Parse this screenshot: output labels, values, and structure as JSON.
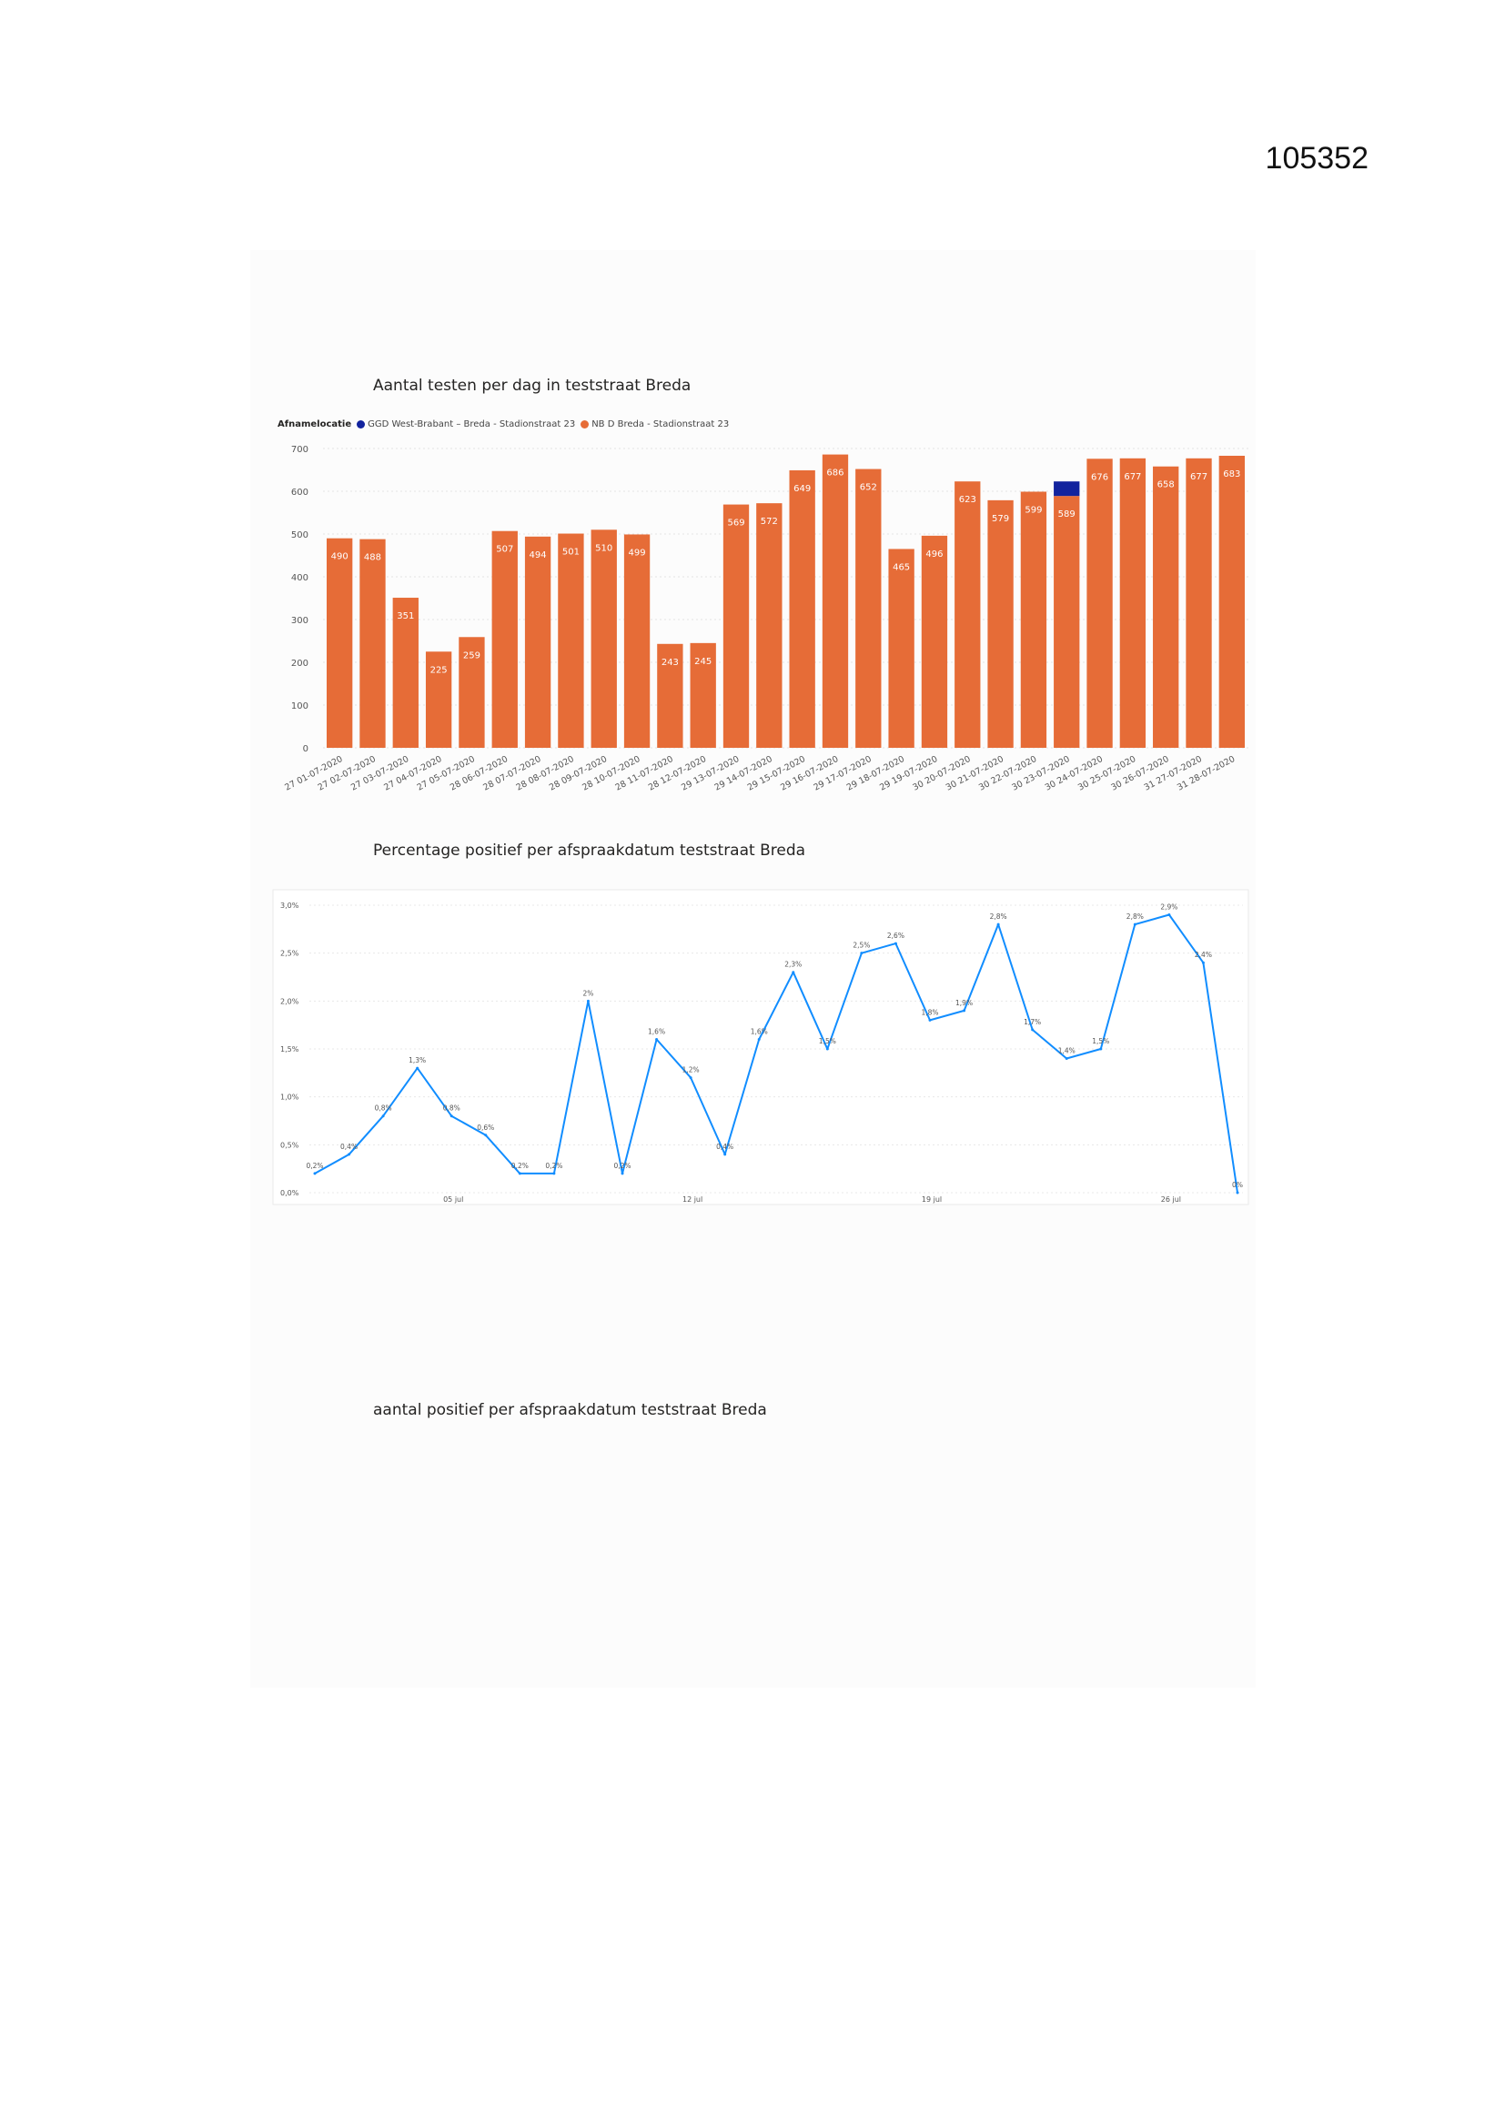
{
  "document_id": "105352",
  "charts": [
    {
      "title": "Aantal testen per dag in teststraat Breda"
    },
    {
      "title": "Percentage positief per afspraakdatum teststraat Breda"
    },
    {
      "title": "aantal positief per afspraakdatum teststraat Breda"
    }
  ],
  "legend": {
    "title": "Afnamelocatie",
    "items": [
      {
        "label": "GGD West-Brabant – Breda - Stadionstraat 23",
        "color": "#12239E"
      },
      {
        "label": "NB D Breda - Stadionstraat 23",
        "color": "#E66C37"
      }
    ]
  },
  "chart_data": [
    {
      "type": "bar",
      "title": "Aantal testen per dag in teststraat Breda",
      "categories": [
        "27 01-07-2020",
        "27 02-07-2020",
        "27 03-07-2020",
        "27 04-07-2020",
        "27 05-07-2020",
        "28 06-07-2020",
        "28 07-07-2020",
        "28 08-07-2020",
        "28 09-07-2020",
        "28 10-07-2020",
        "28 11-07-2020",
        "28 12-07-2020",
        "29 13-07-2020",
        "29 14-07-2020",
        "29 15-07-2020",
        "29 16-07-2020",
        "29 17-07-2020",
        "29 18-07-2020",
        "29 19-07-2020",
        "30 20-07-2020",
        "30 21-07-2020",
        "30 22-07-2020",
        "30 23-07-2020",
        "30 24-07-2020",
        "30 25-07-2020",
        "30 26-07-2020",
        "31 27-07-2020",
        "31 28-07-2020"
      ],
      "series": [
        {
          "name": "GGD West-Brabant – Breda - Stadionstraat 23",
          "color": "#12239E",
          "values": [
            0,
            0,
            0,
            0,
            0,
            0,
            0,
            0,
            0,
            0,
            0,
            0,
            0,
            0,
            0,
            0,
            0,
            0,
            0,
            0,
            0,
            0,
            34,
            0,
            0,
            0,
            0,
            0
          ]
        },
        {
          "name": "NB D Breda - Stadionstraat 23",
          "color": "#E66C37",
          "values": [
            490,
            488,
            351,
            225,
            259,
            507,
            494,
            501,
            510,
            499,
            243,
            245,
            569,
            572,
            649,
            686,
            652,
            465,
            496,
            623,
            579,
            599,
            589,
            676,
            677,
            658,
            677,
            683
          ]
        }
      ],
      "labels": [
        "490",
        "488",
        "351",
        "225",
        "259",
        "507",
        "494",
        "501",
        "510",
        "499",
        "243",
        "245",
        "569",
        "572",
        "649",
        "686",
        "652",
        "465",
        "496",
        "623",
        "579",
        "599",
        "589",
        "676",
        "677",
        "658",
        "677",
        "683"
      ],
      "yticks": [
        "0",
        "100",
        "200",
        "300",
        "400",
        "500",
        "600",
        "700"
      ],
      "ylim": [
        0,
        700
      ],
      "grid": true,
      "legend_position": "top-left"
    },
    {
      "type": "line",
      "title": "Percentage positief per afspraakdatum teststraat Breda",
      "color": "#118DFF",
      "values": [
        0.2,
        0.4,
        0.8,
        1.3,
        0.8,
        0.6,
        0.2,
        0.2,
        2.0,
        0.2,
        1.6,
        1.2,
        0.4,
        1.6,
        2.3,
        1.5,
        2.5,
        2.6,
        1.8,
        1.9,
        2.8,
        1.7,
        1.4,
        1.5,
        2.8,
        2.9,
        2.4,
        0.0
      ],
      "labels": [
        "0,2%",
        "0,4%",
        "0,8%",
        "1,3%",
        "0,8%",
        "0,6%",
        "0,2%",
        "0,2%",
        "2%",
        "0,2%",
        "1,6%",
        "1,2%",
        "0,4%",
        "1,6%",
        "2,3%",
        "1,5%",
        "2,5%",
        "2,6%",
        "1,8%",
        "1,9%",
        "2,8%",
        "1,7%",
        "1,4%",
        "1,5%",
        "2,8%",
        "2,9%",
        "2,4%",
        "0%"
      ],
      "label_shown": [
        true,
        true,
        true,
        true,
        true,
        true,
        true,
        true,
        true,
        true,
        true,
        true,
        true,
        true,
        true,
        true,
        true,
        true,
        true,
        true,
        true,
        true,
        true,
        true,
        true,
        true,
        true,
        true
      ],
      "yticks": [
        "0,0%",
        "0,5%",
        "1,0%",
        "1,5%",
        "2,0%",
        "2,5%",
        "3,0%"
      ],
      "ylim": [
        0,
        3.0
      ],
      "xticks": [
        {
          "label": "05 jul",
          "index": 4
        },
        {
          "label": "12 jul",
          "index": 11
        },
        {
          "label": "19 jul",
          "index": 18
        },
        {
          "label": "26 jul",
          "index": 25
        }
      ],
      "grid": true
    }
  ]
}
